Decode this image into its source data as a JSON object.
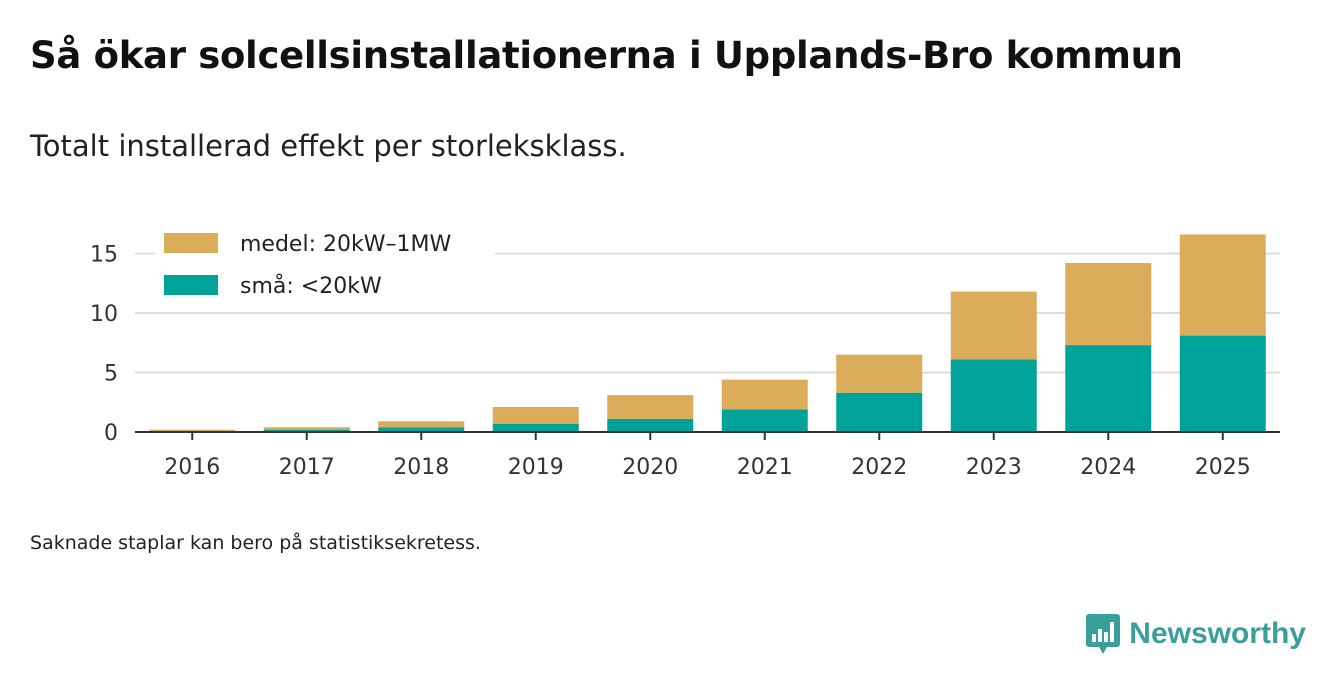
{
  "title": "Så ökar solcellsinstallationerna i Upplands-Bro kommun",
  "subtitle": "Totalt installerad effekt per storleksklass.",
  "note": "Saknade staplar kan bero på statistiksekretess.",
  "brand": {
    "name": "Newsworthy",
    "icon": "newsworthy-logo-icon",
    "color": "#3a9f9a"
  },
  "chart_data": {
    "type": "bar",
    "stacked": true,
    "title": "Så ökar solcellsinstallationerna i Upplands-Bro kommun",
    "subtitle": "Totalt installerad effekt per storleksklass.",
    "xlabel": "",
    "ylabel": "",
    "ylim": [
      0,
      17.5
    ],
    "yticks": [
      0,
      5,
      10,
      15
    ],
    "grid": true,
    "legend_position": "top-left",
    "categories": [
      "2016",
      "2017",
      "2018",
      "2019",
      "2020",
      "2021",
      "2022",
      "2023",
      "2024",
      "2025"
    ],
    "series": [
      {
        "name": "små: <20kW",
        "color": "#00a39a",
        "values": [
          0.1,
          0.2,
          0.4,
          0.7,
          1.1,
          1.9,
          3.3,
          6.1,
          7.3,
          8.1
        ]
      },
      {
        "name": "medel: 20kW–1MW",
        "color": "#dbad5a",
        "values": [
          0.1,
          0.2,
          0.5,
          1.4,
          2.0,
          2.5,
          3.2,
          5.7,
          6.9,
          8.5
        ]
      }
    ],
    "legend_order": [
      "medel: 20kW–1MW",
      "små: <20kW"
    ]
  }
}
